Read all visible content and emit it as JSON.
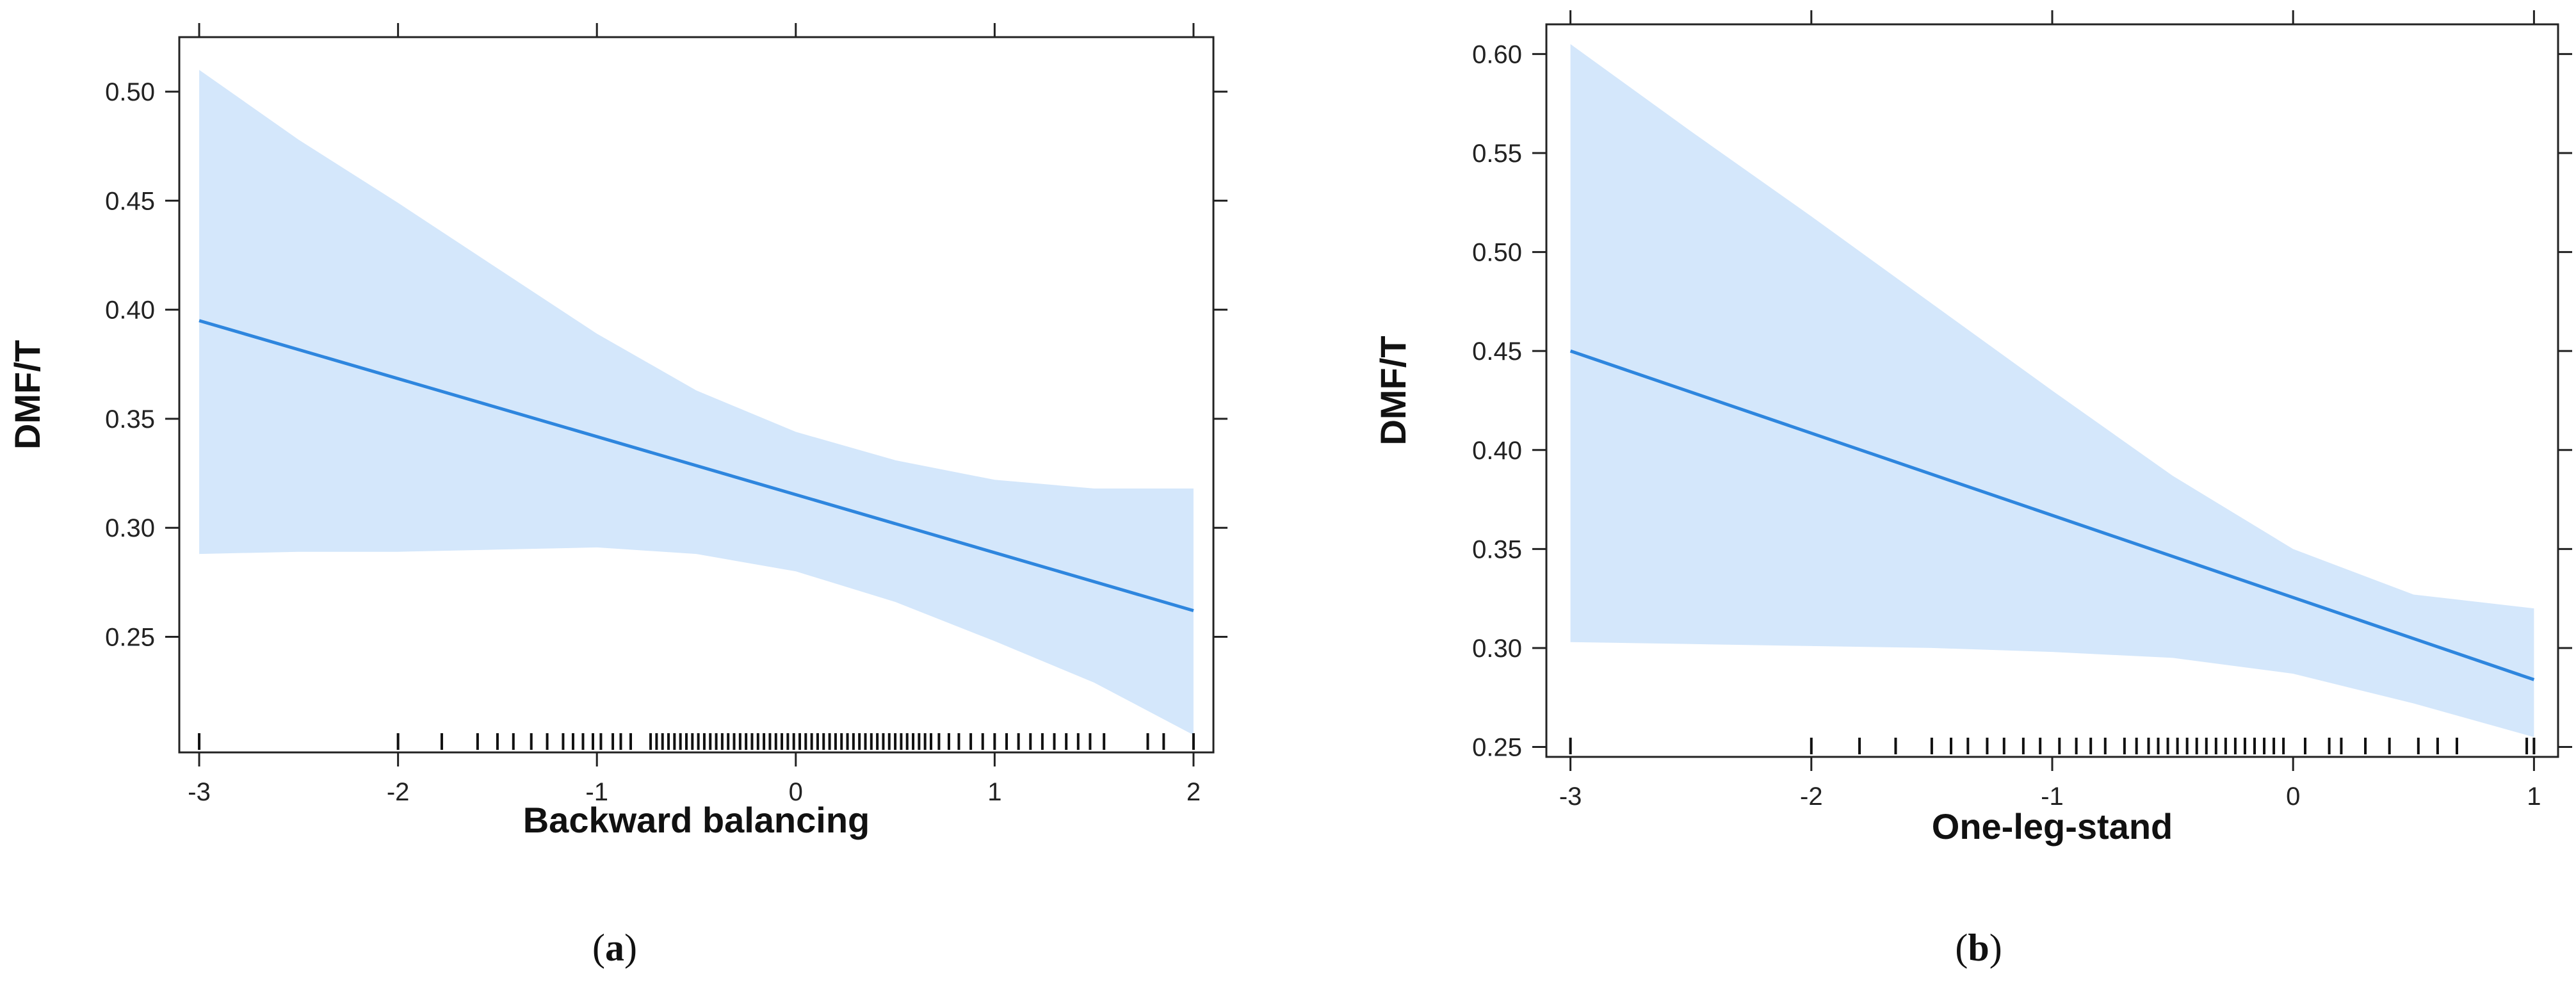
{
  "chart_data": [
    {
      "type": "line",
      "panel_label": "a",
      "xlabel": "Backward balancing",
      "ylabel": "DMF/T",
      "xlim": [
        -3.1,
        2.1
      ],
      "ylim": [
        0.197,
        0.525
      ],
      "x_ticks": [
        -3,
        -2,
        -1,
        0,
        1,
        2
      ],
      "x_tick_labels": [
        "-3",
        "-2",
        "-1",
        "0",
        "1",
        "2"
      ],
      "y_ticks": [
        0.25,
        0.3,
        0.35,
        0.4,
        0.45,
        0.5
      ],
      "y_tick_labels": [
        "0.25",
        "0.30",
        "0.35",
        "0.40",
        "0.45",
        "0.50"
      ],
      "fit": {
        "x": [
          -3,
          2
        ],
        "y": [
          0.395,
          0.262
        ]
      },
      "ci_band": {
        "x": [
          -3,
          -2.5,
          -2,
          -1.5,
          -1,
          -0.5,
          0,
          0.5,
          1,
          1.5,
          2
        ],
        "upper": [
          0.51,
          0.478,
          0.449,
          0.419,
          0.389,
          0.363,
          0.344,
          0.331,
          0.322,
          0.318,
          0.318
        ],
        "lower": [
          0.288,
          0.289,
          0.289,
          0.29,
          0.291,
          0.288,
          0.28,
          0.266,
          0.248,
          0.229,
          0.205
        ]
      },
      "rug_x": [
        -3,
        -2,
        -1.78,
        -1.6,
        -1.5,
        -1.42,
        -1.33,
        -1.25,
        -1.17,
        -1.12,
        -1.07,
        -1.02,
        -0.98,
        -0.92,
        -0.88,
        -0.83,
        -0.73,
        -0.7,
        -0.67,
        -0.64,
        -0.61,
        -0.58,
        -0.55,
        -0.52,
        -0.49,
        -0.46,
        -0.43,
        -0.4,
        -0.37,
        -0.34,
        -0.31,
        -0.28,
        -0.25,
        -0.22,
        -0.19,
        -0.16,
        -0.13,
        -0.1,
        -0.07,
        -0.04,
        -0.01,
        0.02,
        0.05,
        0.08,
        0.11,
        0.14,
        0.17,
        0.2,
        0.23,
        0.26,
        0.29,
        0.32,
        0.35,
        0.38,
        0.41,
        0.44,
        0.47,
        0.5,
        0.53,
        0.56,
        0.59,
        0.62,
        0.65,
        0.68,
        0.72,
        0.77,
        0.82,
        0.88,
        0.94,
        1.0,
        1.06,
        1.12,
        1.18,
        1.24,
        1.3,
        1.36,
        1.42,
        1.48,
        1.55,
        1.77,
        1.85,
        2.0
      ]
    },
    {
      "type": "line",
      "panel_label": "b",
      "xlabel": "One-leg-stand",
      "ylabel": "DMF/T",
      "xlim": [
        -3.1,
        1.1
      ],
      "ylim": [
        0.245,
        0.615
      ],
      "x_ticks": [
        -3,
        -2,
        -1,
        0,
        1
      ],
      "x_tick_labels": [
        "-3",
        "-2",
        "-1",
        "0",
        "1"
      ],
      "y_ticks": [
        0.25,
        0.3,
        0.35,
        0.4,
        0.45,
        0.5,
        0.55,
        0.6
      ],
      "y_tick_labels": [
        "0.25",
        "0.30",
        "0.35",
        "0.40",
        "0.45",
        "0.50",
        "0.55",
        "0.60"
      ],
      "fit": {
        "x": [
          -3,
          1
        ],
        "y": [
          0.45,
          0.284
        ]
      },
      "ci_band": {
        "x": [
          -3,
          -2.5,
          -2,
          -1.5,
          -1,
          -0.5,
          0,
          0.5,
          1
        ],
        "upper": [
          0.605,
          0.561,
          0.518,
          0.474,
          0.43,
          0.387,
          0.35,
          0.327,
          0.32
        ],
        "lower": [
          0.303,
          0.302,
          0.301,
          0.3,
          0.298,
          0.295,
          0.287,
          0.272,
          0.255
        ]
      },
      "rug_x": [
        -3,
        -2,
        -1.8,
        -1.65,
        -1.5,
        -1.42,
        -1.35,
        -1.27,
        -1.2,
        -1.12,
        -1.05,
        -0.97,
        -0.9,
        -0.84,
        -0.78,
        -0.7,
        -0.65,
        -0.6,
        -0.56,
        -0.52,
        -0.48,
        -0.44,
        -0.4,
        -0.36,
        -0.32,
        -0.28,
        -0.24,
        -0.2,
        -0.16,
        -0.12,
        -0.08,
        -0.04,
        0.05,
        0.15,
        0.2,
        0.3,
        0.4,
        0.52,
        0.6,
        0.68,
        0.97,
        1.0
      ]
    }
  ]
}
